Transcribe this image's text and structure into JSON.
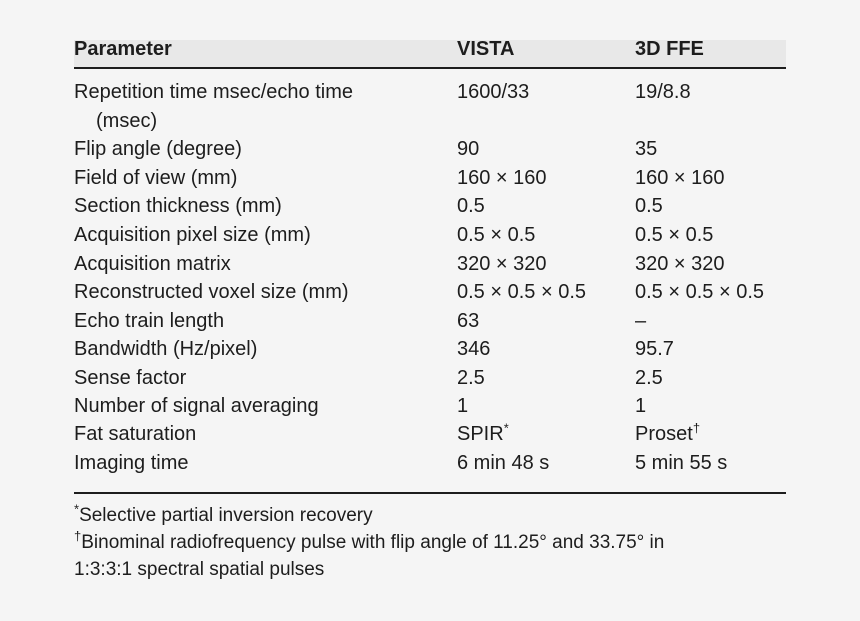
{
  "table": {
    "headers": [
      "Parameter",
      "VISTA",
      "3D FFE"
    ],
    "rows": [
      {
        "param_line1": "Repetition time msec/echo time",
        "param_line2": "(msec)",
        "vista": "1600/33",
        "ffe": "19/8.8"
      },
      {
        "param": "Flip angle (degree)",
        "vista": "90",
        "ffe": "35"
      },
      {
        "param": "Field of view (mm)",
        "vista": "160 × 160",
        "ffe": "160 × 160"
      },
      {
        "param": "Section thickness (mm)",
        "vista": "0.5",
        "ffe": "0.5"
      },
      {
        "param": "Acquisition pixel size (mm)",
        "vista": "0.5 × 0.5",
        "ffe": "0.5 × 0.5"
      },
      {
        "param": "Acquisition matrix",
        "vista": "320 × 320",
        "ffe": "320 × 320"
      },
      {
        "param": "Reconstructed voxel size (mm)",
        "vista": "0.5 × 0.5 × 0.5",
        "ffe": "0.5 × 0.5 × 0.5"
      },
      {
        "param": "Echo train length",
        "vista": "63",
        "ffe": "–"
      },
      {
        "param": "Bandwidth (Hz/pixel)",
        "vista": "346",
        "ffe": "95.7"
      },
      {
        "param": "Sense factor",
        "vista": "2.5",
        "ffe": "2.5"
      },
      {
        "param": "Number of signal averaging",
        "vista": "1",
        "ffe": "1"
      },
      {
        "param": "Fat saturation",
        "vista": "SPIR",
        "vista_sup": "*",
        "ffe": "Proset",
        "ffe_sup": "†"
      },
      {
        "param": "Imaging time",
        "vista": "6 min 48 s",
        "ffe": "5 min 55 s"
      }
    ]
  },
  "footnotes": {
    "note1_mark": "*",
    "note1_text": "Selective partial inversion recovery",
    "note2_mark": "†",
    "note2_text": "Binominal radiofrequency pulse with flip angle of 11.25° and 33.75° in",
    "note2_line2": "1:3:3:1 spectral spatial pulses"
  },
  "colors": {
    "background": "#f5f5f5",
    "header_band": "#e8e8e8",
    "text": "#1d1d1d"
  }
}
